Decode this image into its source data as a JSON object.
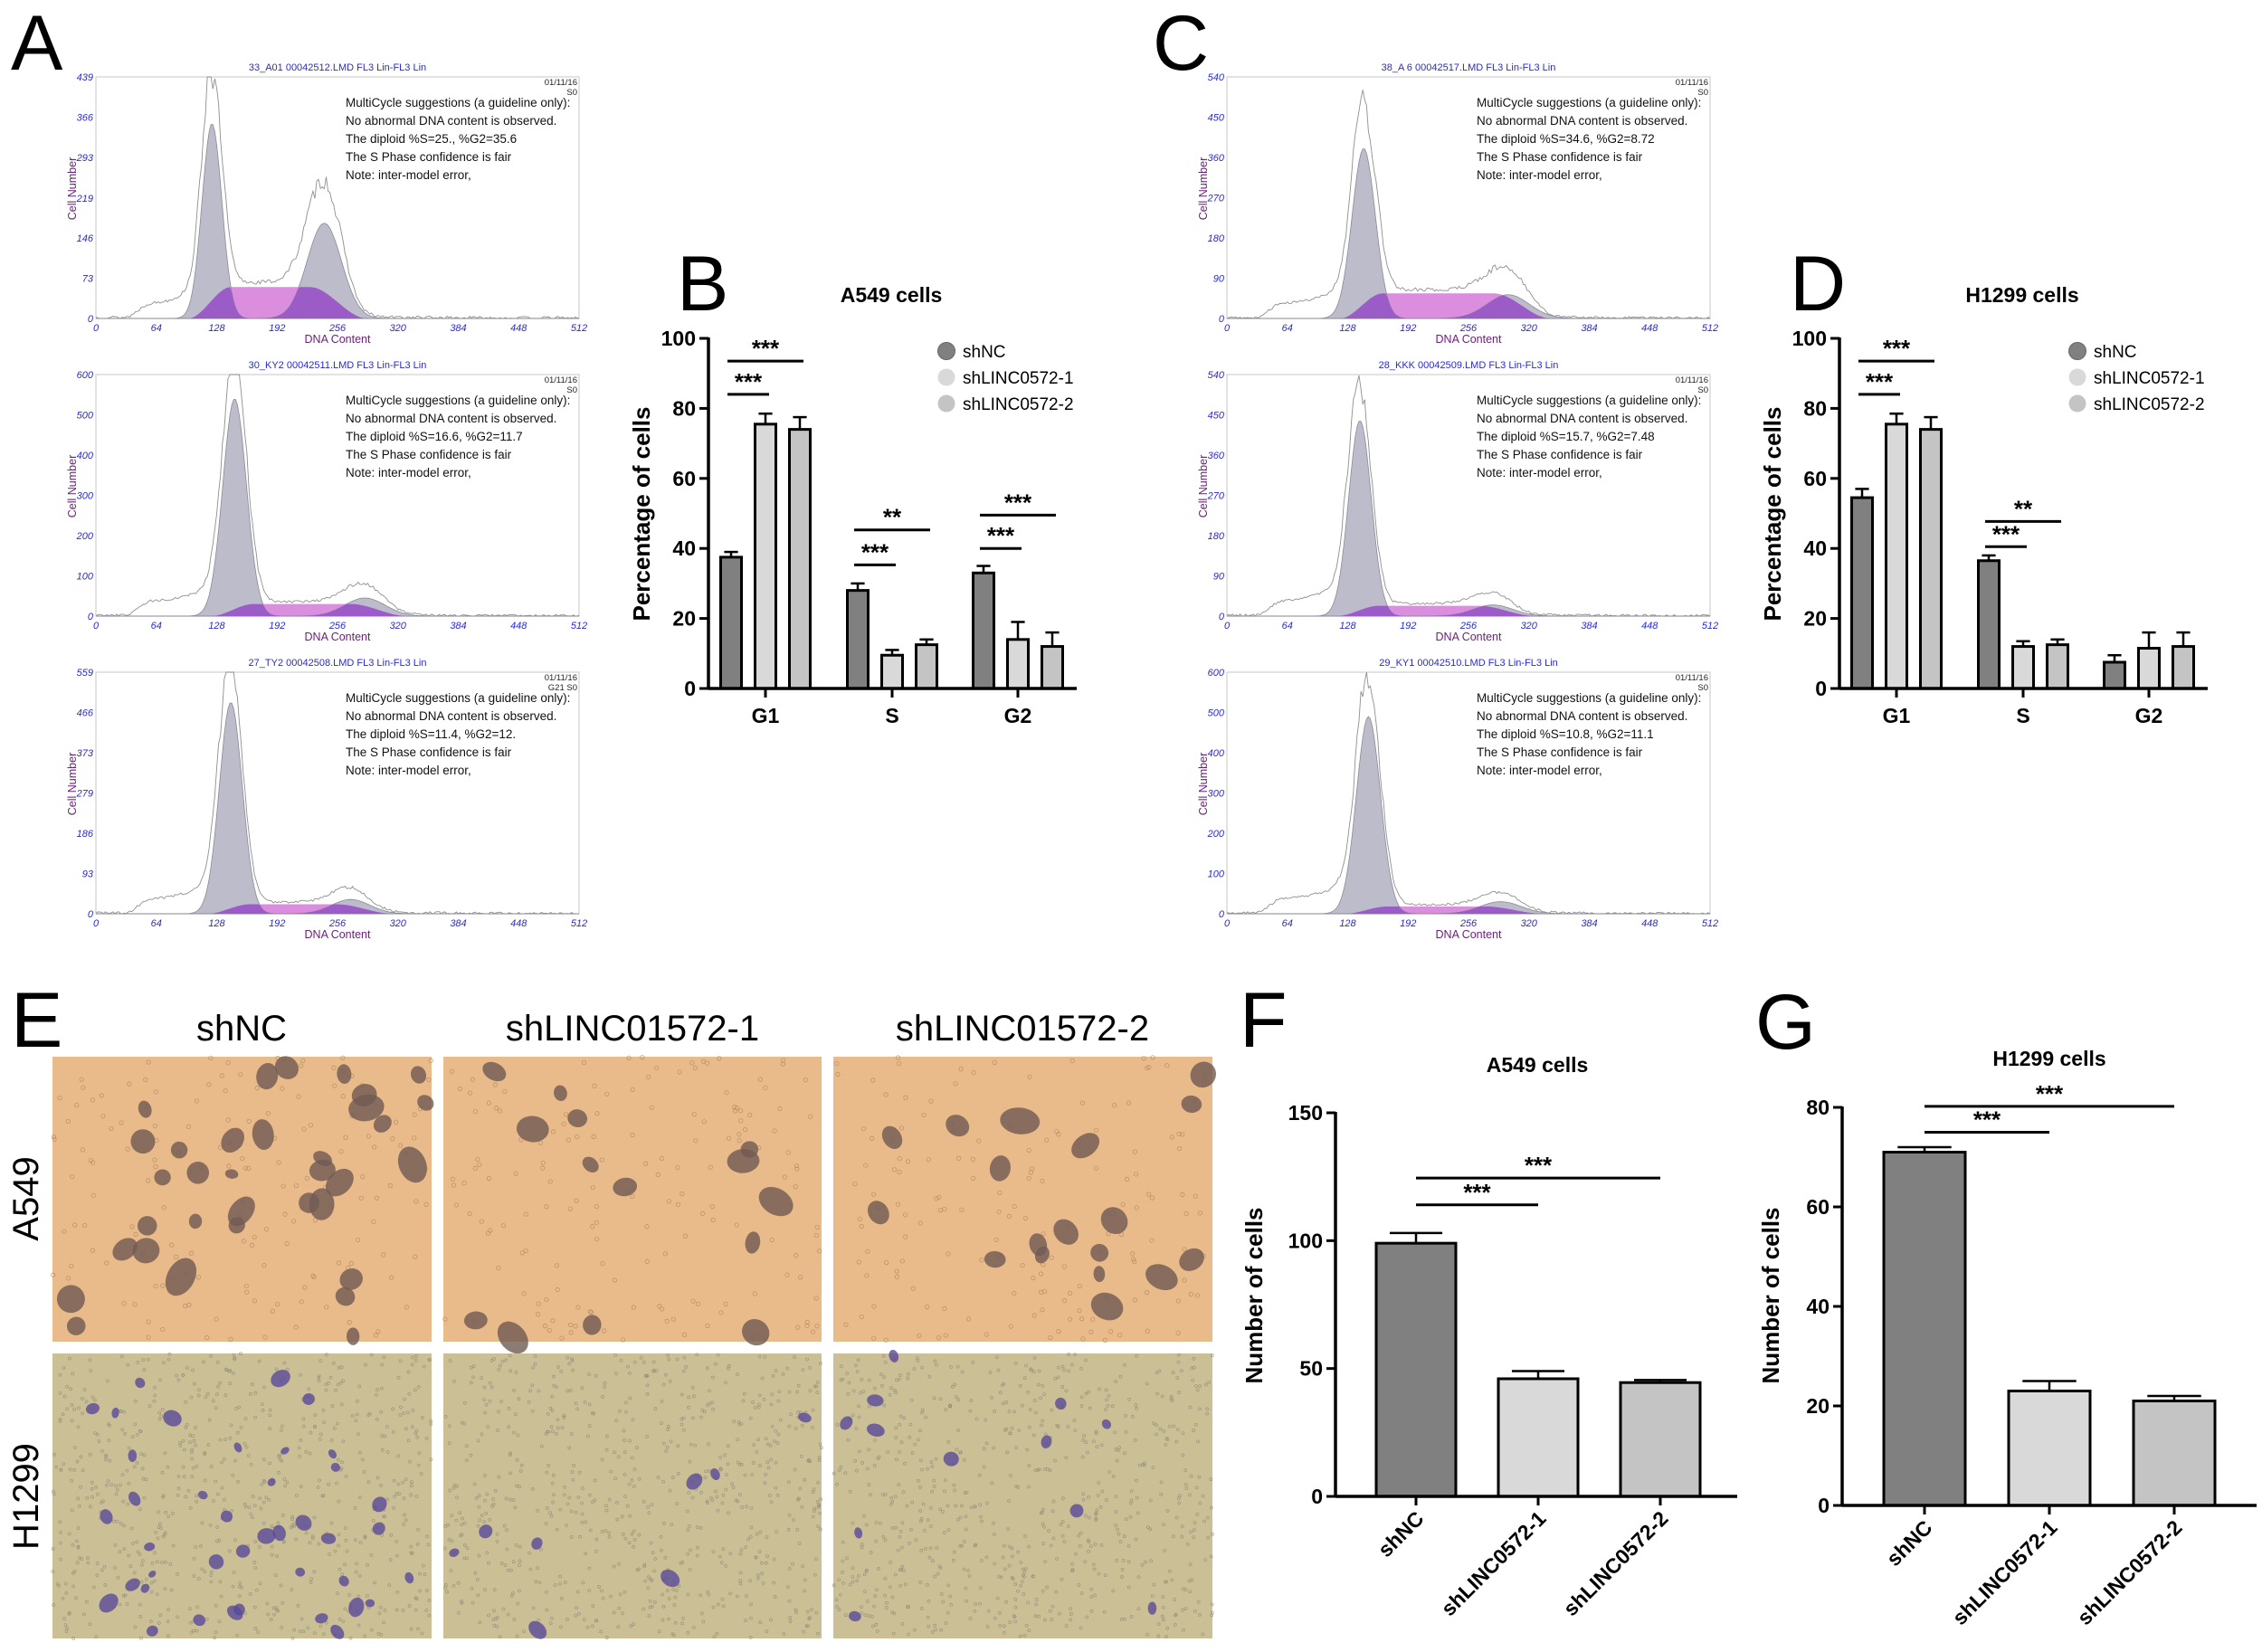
{
  "panel_labels": {
    "A": "A",
    "B": "B",
    "C": "C",
    "D": "D",
    "E": "E",
    "F": "F",
    "G": "G"
  },
  "micrographs": {
    "columns": [
      "shNC",
      "shLINC01572-1",
      "shLINC01572-2"
    ],
    "rows": [
      "A549",
      "H1299"
    ],
    "colors": {
      "A549_background": "#e9bb8a",
      "A549_cells": "#6f5a52",
      "H1299_background": "#cbbf95",
      "H1299_cells": "#5a4a9a"
    }
  },
  "chart_data": [
    {
      "id": "A1",
      "panel": "A",
      "type": "histogram",
      "title": "33_A01 00042512.LMD FL3 Lin-FL3 Lin",
      "xlabel": "DNA Content",
      "ylabel": "Cell Number",
      "xlim": [
        0,
        512
      ],
      "ylim": [
        0,
        439
      ],
      "x_ticks": [
        0,
        64,
        128,
        192,
        256,
        320,
        384,
        448,
        512
      ],
      "y_ticks": [
        0,
        73,
        146,
        219,
        293,
        366,
        439
      ],
      "date": "01/11/16",
      "tag": "S0",
      "notes": [
        "MultiCycle suggestions (a guideline only):",
        "No abnormal DNA content is observed.",
        "The diploid %S=25., %G2=35.6",
        "The S Phase confidence is fair",
        "Note: inter-model error,"
      ],
      "model": {
        "g1": {
          "channel": 123,
          "count": 354
        },
        "g2": {
          "channel": 242,
          "count": 173
        },
        "s_level": 57
      }
    },
    {
      "id": "A2",
      "panel": "A",
      "type": "histogram",
      "title": "30_KY2 00042511.LMD FL3 Lin-FL3 Lin",
      "xlabel": "DNA Content",
      "ylabel": "Cell Number",
      "xlim": [
        0,
        512
      ],
      "ylim": [
        0,
        600
      ],
      "x_ticks": [
        0,
        64,
        128,
        192,
        256,
        320,
        384,
        448,
        512
      ],
      "y_ticks": [
        0,
        100,
        200,
        300,
        400,
        500,
        600
      ],
      "date": "01/11/16",
      "tag": "S0",
      "notes": [
        "MultiCycle suggestions (a guideline only):",
        "No abnormal DNA content is observed.",
        "The diploid %S=16.6, %G2=11.7",
        "The S Phase confidence is fair",
        "Note: inter-model error,"
      ],
      "model": {
        "g1": {
          "channel": 147,
          "count": 540
        },
        "g2": {
          "channel": 285,
          "count": 45
        },
        "s_level": 30
      }
    },
    {
      "id": "A3",
      "panel": "A",
      "type": "histogram",
      "title": "27_TY2 00042508.LMD FL3 Lin-FL3 Lin",
      "xlabel": "DNA Content",
      "ylabel": "Cell Number",
      "xlim": [
        0,
        512
      ],
      "ylim": [
        0,
        559
      ],
      "x_ticks": [
        0,
        64,
        128,
        192,
        256,
        320,
        384,
        448,
        512
      ],
      "y_ticks": [
        0,
        93,
        186,
        279,
        373,
        466,
        559
      ],
      "date": "01/11/16",
      "tag": "G21 S0",
      "notes": [
        "MultiCycle suggestions (a guideline only):",
        "No abnormal DNA content is observed.",
        "The diploid %S=11.4, %G2=12.",
        "The S Phase confidence is fair",
        "Note: inter-model error,"
      ],
      "model": {
        "g1": {
          "channel": 143,
          "count": 489
        },
        "g2": {
          "channel": 270,
          "count": 33
        },
        "s_level": 22
      }
    },
    {
      "id": "C1",
      "panel": "C",
      "type": "histogram",
      "title": "38_A 6 00042517.LMD FL3 Lin-FL3 Lin",
      "xlabel": "DNA Content",
      "ylabel": "Cell Number",
      "xlim": [
        0,
        512
      ],
      "ylim": [
        0,
        540
      ],
      "x_ticks": [
        0,
        64,
        128,
        192,
        256,
        320,
        384,
        448,
        512
      ],
      "y_ticks": [
        0,
        90,
        180,
        270,
        360,
        450,
        540
      ],
      "date": "01/11/16",
      "tag": "S0",
      "notes": [
        "MultiCycle suggestions (a guideline only):",
        "No abnormal DNA content is observed.",
        "The diploid %S=34.6, %G2=8.72",
        "The S Phase confidence is fair",
        "Note: inter-model error,"
      ],
      "model": {
        "g1": {
          "channel": 145,
          "count": 380
        },
        "g2": {
          "channel": 298,
          "count": 53
        },
        "s_level": 56
      }
    },
    {
      "id": "C2",
      "panel": "C",
      "type": "histogram",
      "title": "28_KKK 00042509.LMD FL3 Lin-FL3 Lin",
      "xlabel": "DNA Content",
      "ylabel": "Cell Number",
      "xlim": [
        0,
        512
      ],
      "ylim": [
        0,
        540
      ],
      "x_ticks": [
        0,
        64,
        128,
        192,
        256,
        320,
        384,
        448,
        512
      ],
      "y_ticks": [
        0,
        90,
        180,
        270,
        360,
        450,
        540
      ],
      "date": "01/11/16",
      "tag": "S0",
      "notes": [
        "MultiCycle suggestions (a guideline only):",
        "No abnormal DNA content is observed.",
        "The diploid %S=15.7, %G2=7.48",
        "The S Phase confidence is fair",
        "Note: inter-model error,"
      ],
      "model": {
        "g1": {
          "channel": 141,
          "count": 437
        },
        "g2": {
          "channel": 282,
          "count": 25
        },
        "s_level": 23
      }
    },
    {
      "id": "C3",
      "panel": "C",
      "type": "histogram",
      "title": "29_KY1 00042510.LMD FL3 Lin-FL3 Lin",
      "xlabel": "DNA Content",
      "ylabel": "Cell Number",
      "xlim": [
        0,
        512
      ],
      "ylim": [
        0,
        600
      ],
      "x_ticks": [
        0,
        64,
        128,
        192,
        256,
        320,
        384,
        448,
        512
      ],
      "y_ticks": [
        0,
        100,
        200,
        300,
        400,
        500,
        600
      ],
      "date": "01/11/16",
      "tag": "S0",
      "notes": [
        "MultiCycle suggestions (a guideline only):",
        "No abnormal DNA content is observed.",
        "The diploid %S=10.8, %G2=11.1",
        "The S Phase confidence is fair",
        "Note: inter-model error,"
      ],
      "model": {
        "g1": {
          "channel": 150,
          "count": 490
        },
        "g2": {
          "channel": 290,
          "count": 30
        },
        "s_level": 18
      }
    },
    {
      "id": "B",
      "panel": "B",
      "type": "bar",
      "title": "A549 cells",
      "xlabel": "",
      "ylabel": "Percentage of cells",
      "categories": [
        "G1",
        "S",
        "G2"
      ],
      "ylim": [
        0,
        100
      ],
      "y_ticks": [
        0,
        20,
        40,
        60,
        80,
        100
      ],
      "legend": "top-right",
      "series": [
        {
          "name": "shNC",
          "values": [
            37.5,
            28,
            33
          ],
          "errors": [
            1.5,
            2,
            2
          ],
          "color": "#808080"
        },
        {
          "name": "shLINC0572-1",
          "values": [
            75.5,
            9.5,
            14
          ],
          "errors": [
            3,
            1.5,
            5
          ],
          "color": "#d9d9d9"
        },
        {
          "name": "shLINC0572-2",
          "values": [
            74,
            12.5,
            12
          ],
          "errors": [
            3.5,
            1.5,
            4
          ],
          "color": "#c4c4c4"
        }
      ],
      "significance": [
        {
          "category": 0,
          "from": 0,
          "to": 1,
          "y": 84,
          "label": "***"
        },
        {
          "category": 0,
          "from": 0,
          "to": 2,
          "y": 93.5,
          "label": "***"
        },
        {
          "category": 1,
          "from": 0,
          "to": 1,
          "y": 35.3,
          "label": "***"
        },
        {
          "category": 1,
          "from": 0,
          "to": 2,
          "y": 45.3,
          "label": "**"
        },
        {
          "category": 2,
          "from": 0,
          "to": 1,
          "y": 40,
          "label": "***"
        },
        {
          "category": 2,
          "from": 0,
          "to": 2,
          "y": 49.5,
          "label": "***"
        }
      ]
    },
    {
      "id": "D",
      "panel": "D",
      "type": "bar",
      "title": "H1299 cells",
      "xlabel": "",
      "ylabel": "Percentage of cells",
      "categories": [
        "G1",
        "S",
        "G2"
      ],
      "ylim": [
        0,
        100
      ],
      "y_ticks": [
        0,
        20,
        40,
        60,
        80,
        100
      ],
      "legend": "top-right",
      "series": [
        {
          "name": "shNC",
          "values": [
            54.5,
            36.5,
            7.5
          ],
          "errors": [
            2.5,
            1.5,
            2
          ],
          "color": "#808080"
        },
        {
          "name": "shLINC0572-1",
          "values": [
            75.5,
            12,
            11.5
          ],
          "errors": [
            3,
            1.5,
            4.5
          ],
          "color": "#d9d9d9"
        },
        {
          "name": "shLINC0572-2",
          "values": [
            74,
            12.5,
            12
          ],
          "errors": [
            3.5,
            1.5,
            4
          ],
          "color": "#c4c4c4"
        }
      ],
      "significance": [
        {
          "category": 0,
          "from": 0,
          "to": 1,
          "y": 84,
          "label": "***"
        },
        {
          "category": 0,
          "from": 0,
          "to": 2,
          "y": 93.5,
          "label": "***"
        },
        {
          "category": 1,
          "from": 0,
          "to": 1,
          "y": 40.5,
          "label": "***"
        },
        {
          "category": 1,
          "from": 0,
          "to": 2,
          "y": 47.7,
          "label": "**"
        }
      ]
    },
    {
      "id": "F",
      "panel": "F",
      "type": "bar",
      "title": "A549 cells",
      "xlabel": "",
      "ylabel": "Number of cells",
      "categories": [
        "shNC",
        "shLINC0572-1",
        "shLINC0572-2"
      ],
      "ylim": [
        0,
        150
      ],
      "y_ticks": [
        0,
        50,
        100,
        150
      ],
      "series": [
        {
          "values": [
            99,
            46,
            44.5
          ],
          "errors": [
            4,
            3,
            1
          ],
          "colors": [
            "#808080",
            "#d9d9d9",
            "#c4c4c4"
          ]
        }
      ],
      "significance": [
        {
          "from": 0,
          "to": 1,
          "y": 114,
          "label": "***"
        },
        {
          "from": 0,
          "to": 2,
          "y": 124.5,
          "label": "***"
        }
      ]
    },
    {
      "id": "G",
      "panel": "G",
      "type": "bar",
      "title": "H1299 cells",
      "xlabel": "",
      "ylabel": "Number of cells",
      "categories": [
        "shNC",
        "shLINC0572-1",
        "shLINC0572-2"
      ],
      "ylim": [
        0,
        80
      ],
      "y_ticks": [
        0,
        20,
        40,
        60,
        80
      ],
      "series": [
        {
          "values": [
            71,
            23,
            21
          ],
          "errors": [
            1,
            2,
            1
          ],
          "colors": [
            "#808080",
            "#d9d9d9",
            "#c4c4c4"
          ]
        }
      ],
      "significance": [
        {
          "from": 0,
          "to": 1,
          "y": 75,
          "label": "***"
        },
        {
          "from": 0,
          "to": 2,
          "y": 80.2,
          "label": "***"
        }
      ]
    }
  ]
}
